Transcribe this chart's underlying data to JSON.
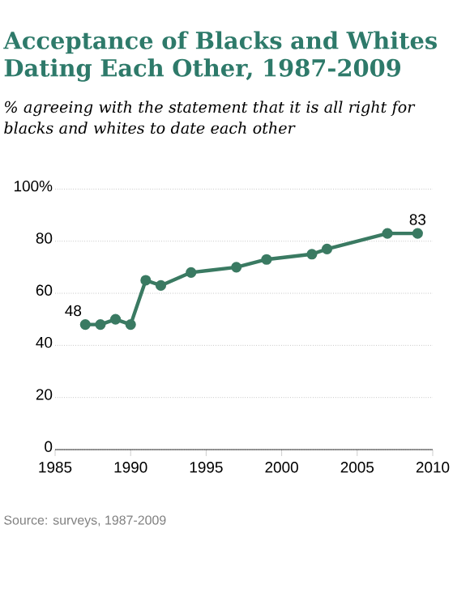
{
  "chart_data": {
    "type": "line",
    "title": "Acceptance of Blacks and Whites Dating Each Other, 1987-2009",
    "subtitle": "% agreeing with the statement that it is all right for blacks and whites to date each other",
    "x": [
      1987,
      1988,
      1989,
      1990,
      1991,
      1992,
      1994,
      1997,
      1999,
      2002,
      2003,
      2007,
      2009
    ],
    "series": [
      {
        "color": "#3a7a62",
        "values": [
          48,
          48,
          50,
          48,
          65,
          63,
          68,
          70,
          73,
          75,
          77,
          83,
          83
        ],
        "value_labels": [
          "48",
          null,
          null,
          null,
          null,
          null,
          null,
          null,
          null,
          null,
          null,
          null,
          "83"
        ]
      }
    ],
    "xlim": [
      1985,
      2010
    ],
    "xticks": [
      1985,
      1990,
      1995,
      2000,
      2005,
      2010
    ],
    "ylim": [
      0,
      100
    ],
    "yticks": [
      0,
      20,
      40,
      60,
      80,
      {
        "value": 100,
        "label": "100%"
      }
    ],
    "grid": "y",
    "marker": "circle",
    "line_style": "solid",
    "annotations": [
      "Source: surveys, 1987-2009"
    ]
  }
}
